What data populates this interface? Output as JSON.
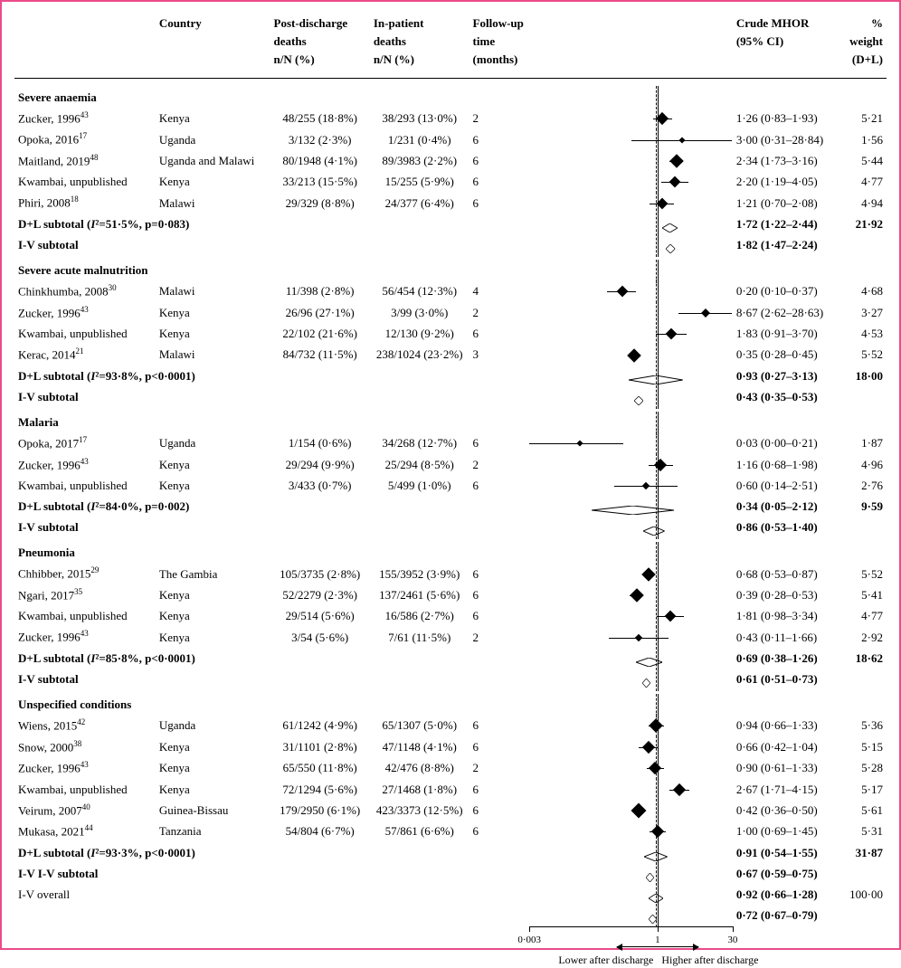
{
  "plot": {
    "log_min": -2.523,
    "log_max": 1.477,
    "ref_solid": 1.0,
    "ref_dash": 0.92,
    "axis_ticks": [
      0.003,
      1,
      30
    ],
    "caption_left": "Lower after discharge",
    "caption_right": "Higher after discharge",
    "colors": {
      "border": "#ea4c89",
      "line": "#000000"
    }
  },
  "headers": {
    "study": "",
    "country": "Country",
    "pd": "Post-discharge\ndeaths\nn/N (%)",
    "ip": "In-patient\ndeaths\nn/N (%)",
    "fu": "Follow-up\ntime\n(months)",
    "plot": "",
    "mhor": "Crude MHOR\n(95% CI)",
    "wt": "% weight\n(D+L)"
  },
  "groups": [
    {
      "title": "Severe anaemia",
      "rows": [
        {
          "study": "Zucker, 1996",
          "sup": "43",
          "country": "Kenya",
          "pd": "48/255 (18·8%)",
          "ip": "38/293 (13·0%)",
          "fu": "2",
          "est": 1.26,
          "lo": 0.83,
          "hi": 1.93,
          "mhor": "1·26 (0·83–1·93)",
          "wt": "5·21",
          "w": 10
        },
        {
          "study": "Opoka, 2016",
          "sup": "17",
          "country": "Uganda",
          "pd": "3/132 (2·3%)",
          "ip": "1/231 (0·4%)",
          "fu": "6",
          "est": 3.0,
          "lo": 0.31,
          "hi": 28.84,
          "mhor": "3·00 (0·31–28·84)",
          "wt": "1·56",
          "w": 5
        },
        {
          "study": "Maitland, 2019",
          "sup": "48",
          "country": "Uganda and Malawi",
          "pd": "80/1948 (4·1%)",
          "ip": "89/3983 (2·2%)",
          "fu": "6",
          "est": 2.34,
          "lo": 1.73,
          "hi": 3.16,
          "mhor": "2·34 (1·73–3·16)",
          "wt": "5·44",
          "w": 11
        },
        {
          "study": "Kwambai, unpublished",
          "sup": "",
          "country": "Kenya",
          "pd": "33/213 (15·5%)",
          "ip": "15/255 (5·9%)",
          "fu": "6",
          "est": 2.2,
          "lo": 1.19,
          "hi": 4.05,
          "mhor": "2·20 (1·19–4·05)",
          "wt": "4·77",
          "w": 9
        },
        {
          "study": "Phiri, 2008",
          "sup": "18",
          "country": "Malawi",
          "pd": "29/329 (8·8%)",
          "ip": "24/377 (6·4%)",
          "fu": "6",
          "est": 1.21,
          "lo": 0.7,
          "hi": 2.08,
          "mhor": "1·21 (0·70–2·08)",
          "wt": "4·94",
          "w": 9
        }
      ],
      "dl": {
        "label": "D+L subtotal (I²=51·5%, p=0·083)",
        "est": 1.72,
        "lo": 1.22,
        "hi": 2.44,
        "mhor": "1·72 (1·22–2·44)",
        "wt": "21·92"
      },
      "iv": {
        "label": "I-V subtotal",
        "est": 1.82,
        "lo": 1.47,
        "hi": 2.24,
        "mhor": "1·82 (1·47–2·24)"
      }
    },
    {
      "title": "Severe acute malnutrition",
      "rows": [
        {
          "study": "Chinkhumba, 2008",
          "sup": "30",
          "country": "Malawi",
          "pd": "11/398 (2·8%)",
          "ip": "56/454 (12·3%)",
          "fu": "4",
          "est": 0.2,
          "lo": 0.1,
          "hi": 0.37,
          "mhor": "0·20 (0·10–0·37)",
          "wt": "4·68",
          "w": 9
        },
        {
          "study": "Zucker, 1996",
          "sup": "43",
          "country": "Kenya",
          "pd": "26/96 (27·1%)",
          "ip": "3/99 (3·0%)",
          "fu": "2",
          "est": 8.67,
          "lo": 2.62,
          "hi": 28.63,
          "mhor": "8·67 (2·62–28·63)",
          "wt": "3·27",
          "w": 7
        },
        {
          "study": "Kwambai, unpublished",
          "sup": "",
          "country": "Kenya",
          "pd": "22/102 (21·6%)",
          "ip": "12/130 (9·2%)",
          "fu": "6",
          "est": 1.83,
          "lo": 0.91,
          "hi": 3.7,
          "mhor": "1·83 (0·91–3·70)",
          "wt": "4·53",
          "w": 9
        },
        {
          "study": "Kerac, 2014",
          "sup": "21",
          "country": "Malawi",
          "pd": "84/732 (11·5%)",
          "ip": "238/1024 (23·2%)",
          "fu": "3",
          "est": 0.35,
          "lo": 0.28,
          "hi": 0.45,
          "mhor": "0·35 (0·28–0·45)",
          "wt": "5·52",
          "w": 11
        }
      ],
      "dl": {
        "label": "D+L subtotal (I²=93·8%, p<0·0001)",
        "est": 0.93,
        "lo": 0.27,
        "hi": 3.13,
        "mhor": "0·93 (0·27–3·13)",
        "wt": "18·00"
      },
      "iv": {
        "label": "I-V subtotal",
        "est": 0.43,
        "lo": 0.35,
        "hi": 0.53,
        "mhor": "0·43 (0·35–0·53)"
      }
    },
    {
      "title": "Malaria",
      "rows": [
        {
          "study": "Opoka, 2017",
          "sup": "17",
          "country": "Uganda",
          "pd": "1/154 (0·6%)",
          "ip": "34/268 (12·7%)",
          "fu": "6",
          "est": 0.03,
          "lo": 0.003,
          "hi": 0.21,
          "mhor": "0·03 (0·00–0·21)",
          "wt": "1·87",
          "w": 5
        },
        {
          "study": "Zucker, 1996",
          "sup": "43",
          "country": "Kenya",
          "pd": "29/294 (9·9%)",
          "ip": "25/294 (8·5%)",
          "fu": "2",
          "est": 1.16,
          "lo": 0.68,
          "hi": 1.98,
          "mhor": "1·16 (0·68–1·98)",
          "wt": "4·96",
          "w": 10
        },
        {
          "study": "Kwambai, unpublished",
          "sup": "",
          "country": "Kenya",
          "pd": "3/433 (0·7%)",
          "ip": "5/499 (1·0%)",
          "fu": "6",
          "est": 0.6,
          "lo": 0.14,
          "hi": 2.51,
          "mhor": "0·60 (0·14–2·51)",
          "wt": "2·76",
          "w": 6
        }
      ],
      "dl": {
        "label": "D+L subtotal (I²=84·0%, p=0·002)",
        "est": 0.34,
        "lo": 0.05,
        "hi": 2.12,
        "mhor": "0·34 (0·05–2·12)",
        "wt": "9·59"
      },
      "iv": {
        "label": "I-V subtotal",
        "est": 0.86,
        "lo": 0.53,
        "hi": 1.4,
        "mhor": "0·86 (0·53–1·40)"
      }
    },
    {
      "title": "Pneumonia",
      "rows": [
        {
          "study": "Chhibber, 2015",
          "sup": "29",
          "country": "The Gambia",
          "pd": "105/3735 (2·8%)",
          "ip": "155/3952 (3·9%)",
          "fu": "6",
          "est": 0.68,
          "lo": 0.53,
          "hi": 0.87,
          "mhor": "0·68 (0·53–0·87)",
          "wt": "5·52",
          "w": 11
        },
        {
          "study": "Ngari, 2017",
          "sup": "35",
          "country": "Kenya",
          "pd": "52/2279 (2·3%)",
          "ip": "137/2461 (5·6%)",
          "fu": "6",
          "est": 0.39,
          "lo": 0.28,
          "hi": 0.53,
          "mhor": "0·39 (0·28–0·53)",
          "wt": "5·41",
          "w": 11
        },
        {
          "study": "Kwambai, unpublished",
          "sup": "",
          "country": "Kenya",
          "pd": "29/514 (5·6%)",
          "ip": "16/586 (2·7%)",
          "fu": "6",
          "est": 1.81,
          "lo": 0.98,
          "hi": 3.34,
          "mhor": "1·81 (0·98–3·34)",
          "wt": "4·77",
          "w": 9
        },
        {
          "study": "Zucker, 1996",
          "sup": "43",
          "country": "Kenya",
          "pd": "3/54 (5·6%)",
          "ip": "7/61 (11·5%)",
          "fu": "2",
          "est": 0.43,
          "lo": 0.11,
          "hi": 1.66,
          "mhor": "0·43 (0·11–1·66)",
          "wt": "2·92",
          "w": 6
        }
      ],
      "dl": {
        "label": "D+L subtotal (I²=85·8%, p<0·0001)",
        "est": 0.69,
        "lo": 0.38,
        "hi": 1.26,
        "mhor": "0·69 (0·38–1·26)",
        "wt": "18·62"
      },
      "iv": {
        "label": "I-V subtotal",
        "est": 0.61,
        "lo": 0.51,
        "hi": 0.73,
        "mhor": "0·61 (0·51–0·73)"
      }
    },
    {
      "title": "Unspecified conditions",
      "rows": [
        {
          "study": "Wiens, 2015",
          "sup": "42",
          "country": "Uganda",
          "pd": "61/1242 (4·9%)",
          "ip": "65/1307 (5·0%)",
          "fu": "6",
          "est": 0.94,
          "lo": 0.66,
          "hi": 1.33,
          "mhor": "0·94 (0·66–1·33)",
          "wt": "5·36",
          "w": 11
        },
        {
          "study": "Snow, 2000",
          "sup": "38",
          "country": "Kenya",
          "pd": "31/1101 (2·8%)",
          "ip": "47/1148 (4·1%)",
          "fu": "6",
          "est": 0.66,
          "lo": 0.42,
          "hi": 1.04,
          "mhor": "0·66 (0·42–1·04)",
          "wt": "5·15",
          "w": 10
        },
        {
          "study": "Zucker, 1996",
          "sup": "43",
          "country": "Kenya",
          "pd": "65/550 (11·8%)",
          "ip": "42/476 (8·8%)",
          "fu": "2",
          "est": 0.9,
          "lo": 0.61,
          "hi": 1.33,
          "mhor": "0·90 (0·61–1·33)",
          "wt": "5·28",
          "w": 10
        },
        {
          "study": "Kwambai, unpublished",
          "sup": "",
          "country": "Kenya",
          "pd": "72/1294 (5·6%)",
          "ip": "27/1468 (1·8%)",
          "fu": "6",
          "est": 2.67,
          "lo": 1.71,
          "hi": 4.15,
          "mhor": "2·67 (1·71–4·15)",
          "wt": "5·17",
          "w": 10
        },
        {
          "study": "Veirum, 2007",
          "sup": "40",
          "country": "Guinea-Bissau",
          "pd": "179/2950 (6·1%)",
          "ip": "423/3373 (12·5%)",
          "fu": "6",
          "est": 0.42,
          "lo": 0.36,
          "hi": 0.5,
          "mhor": "0·42 (0·36–0·50)",
          "wt": "5·61",
          "w": 12
        },
        {
          "study": "Mukasa, 2021",
          "sup": "44",
          "country": "Tanzania",
          "pd": "54/804 (6·7%)",
          "ip": "57/861 (6·6%)",
          "fu": "6",
          "est": 1.0,
          "lo": 0.69,
          "hi": 1.45,
          "mhor": "1·00 (0·69–1·45)",
          "wt": "5·31",
          "w": 10
        }
      ],
      "dl": {
        "label": "D+L subtotal (I²=93·3%, p<0·0001)",
        "est": 0.91,
        "lo": 0.54,
        "hi": 1.55,
        "mhor": "0·91 (0·54–1·55)",
        "wt": "31·87"
      },
      "iv": {
        "label": "I-V I-V subtotal",
        "est": 0.67,
        "lo": 0.59,
        "hi": 0.75,
        "mhor": "0·67 (0·59–0·75)"
      }
    }
  ],
  "overall": [
    {
      "label": "I-V overall",
      "est": 0.92,
      "lo": 0.66,
      "hi": 1.28,
      "mhor": "0·92 (0·66–1·28)",
      "wt": "100·00",
      "bold": true
    },
    {
      "label": "",
      "est": 0.72,
      "lo": 0.67,
      "hi": 0.79,
      "mhor": "0·72 (0·67–0·79)",
      "wt": "",
      "bold": true
    }
  ]
}
